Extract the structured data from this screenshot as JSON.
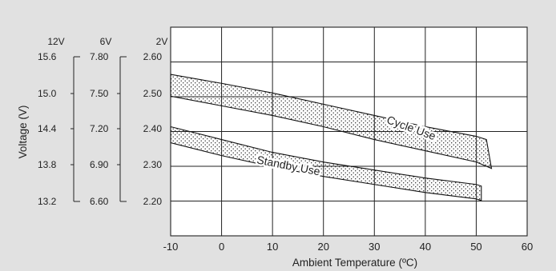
{
  "chart_data": {
    "type": "line",
    "title": "",
    "xlabel": "Ambient Temperature (ºC)",
    "ylabel": "Voltage (V)",
    "x_ticks": [
      "-10",
      "0",
      "10",
      "20",
      "30",
      "40",
      "50",
      "60"
    ],
    "xlim": [
      -10,
      60
    ],
    "grid": true,
    "voltage_scales": [
      {
        "header": "12V",
        "ticks": [
          "15.6",
          "15.0",
          "14.4",
          "13.8",
          "13.2"
        ]
      },
      {
        "header": "6V",
        "ticks": [
          "7.80",
          "7.50",
          "7.20",
          "6.90",
          "6.60"
        ]
      },
      {
        "header": "2V",
        "ticks": [
          "2.60",
          "2.50",
          "2.40",
          "2.30",
          "2.20"
        ]
      }
    ],
    "cell_voltage_range": [
      2.1,
      2.75
    ],
    "series": [
      {
        "name": "Cycle Use",
        "upper": {
          "x": [
            -10,
            0,
            10,
            20,
            30,
            40,
            50,
            52
          ],
          "y": [
            2.603,
            2.575,
            2.545,
            2.51,
            2.475,
            2.44,
            2.41,
            2.4
          ]
        },
        "lower": {
          "x": [
            -10,
            0,
            10,
            20,
            30,
            40,
            50,
            53
          ],
          "y": [
            2.535,
            2.505,
            2.475,
            2.44,
            2.4,
            2.365,
            2.33,
            2.31
          ]
        }
      },
      {
        "name": "Standby Use",
        "upper": {
          "x": [
            -10,
            0,
            10,
            20,
            30,
            40,
            50,
            51
          ],
          "y": [
            2.44,
            2.4,
            2.36,
            2.33,
            2.305,
            2.28,
            2.26,
            2.255
          ]
        },
        "lower": {
          "x": [
            -10,
            0,
            10,
            20,
            30,
            40,
            50,
            51
          ],
          "y": [
            2.39,
            2.35,
            2.315,
            2.285,
            2.26,
            2.235,
            2.215,
            2.21
          ]
        }
      }
    ]
  }
}
